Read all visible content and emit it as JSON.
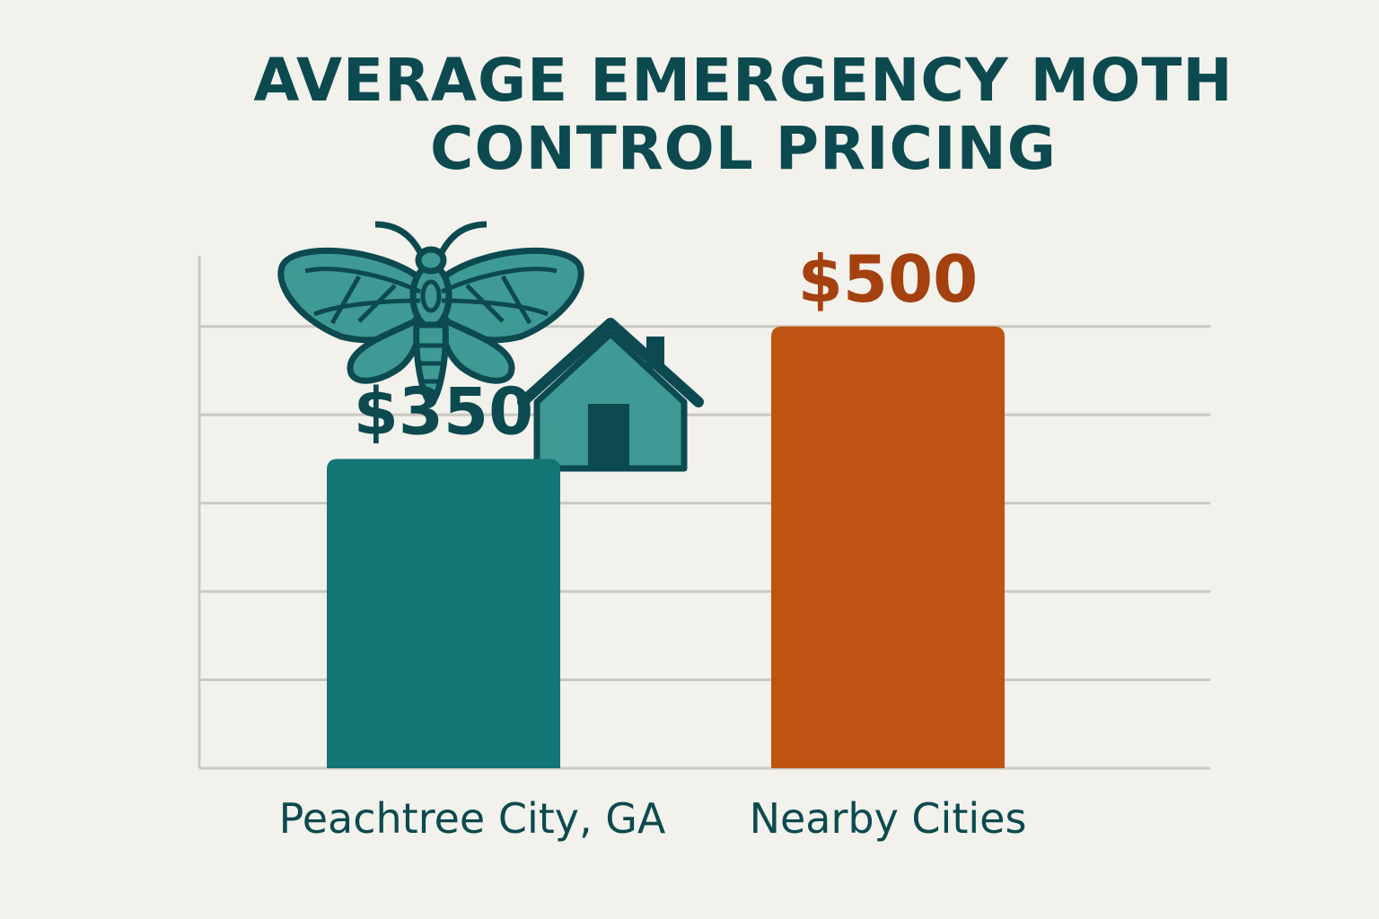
{
  "chart_data": {
    "type": "bar",
    "title": "AVERAGE EMERGENCY MOTH CONTROL PRICING",
    "title_lines": [
      "AVERAGE EMERGENCY MOTH",
      "CONTROL PRICING"
    ],
    "xlabel": "",
    "ylabel": "",
    "categories": [
      "Peachtree City, GA",
      "Nearby Cities"
    ],
    "values": [
      350,
      500
    ],
    "value_labels": [
      "$350",
      "$500"
    ],
    "ylim": [
      0,
      580
    ],
    "grid": true,
    "colors": {
      "bars": [
        "#137675",
        "#bf5311"
      ],
      "value_labels": [
        "#0c4a4f",
        "#a4410f"
      ],
      "title": "#0c4a4f",
      "axis": "#c9c8c2",
      "icons": "#3f9a95",
      "icon_outline": "#0c4a4f"
    },
    "icons": [
      "moth-icon",
      "house-icon"
    ]
  }
}
